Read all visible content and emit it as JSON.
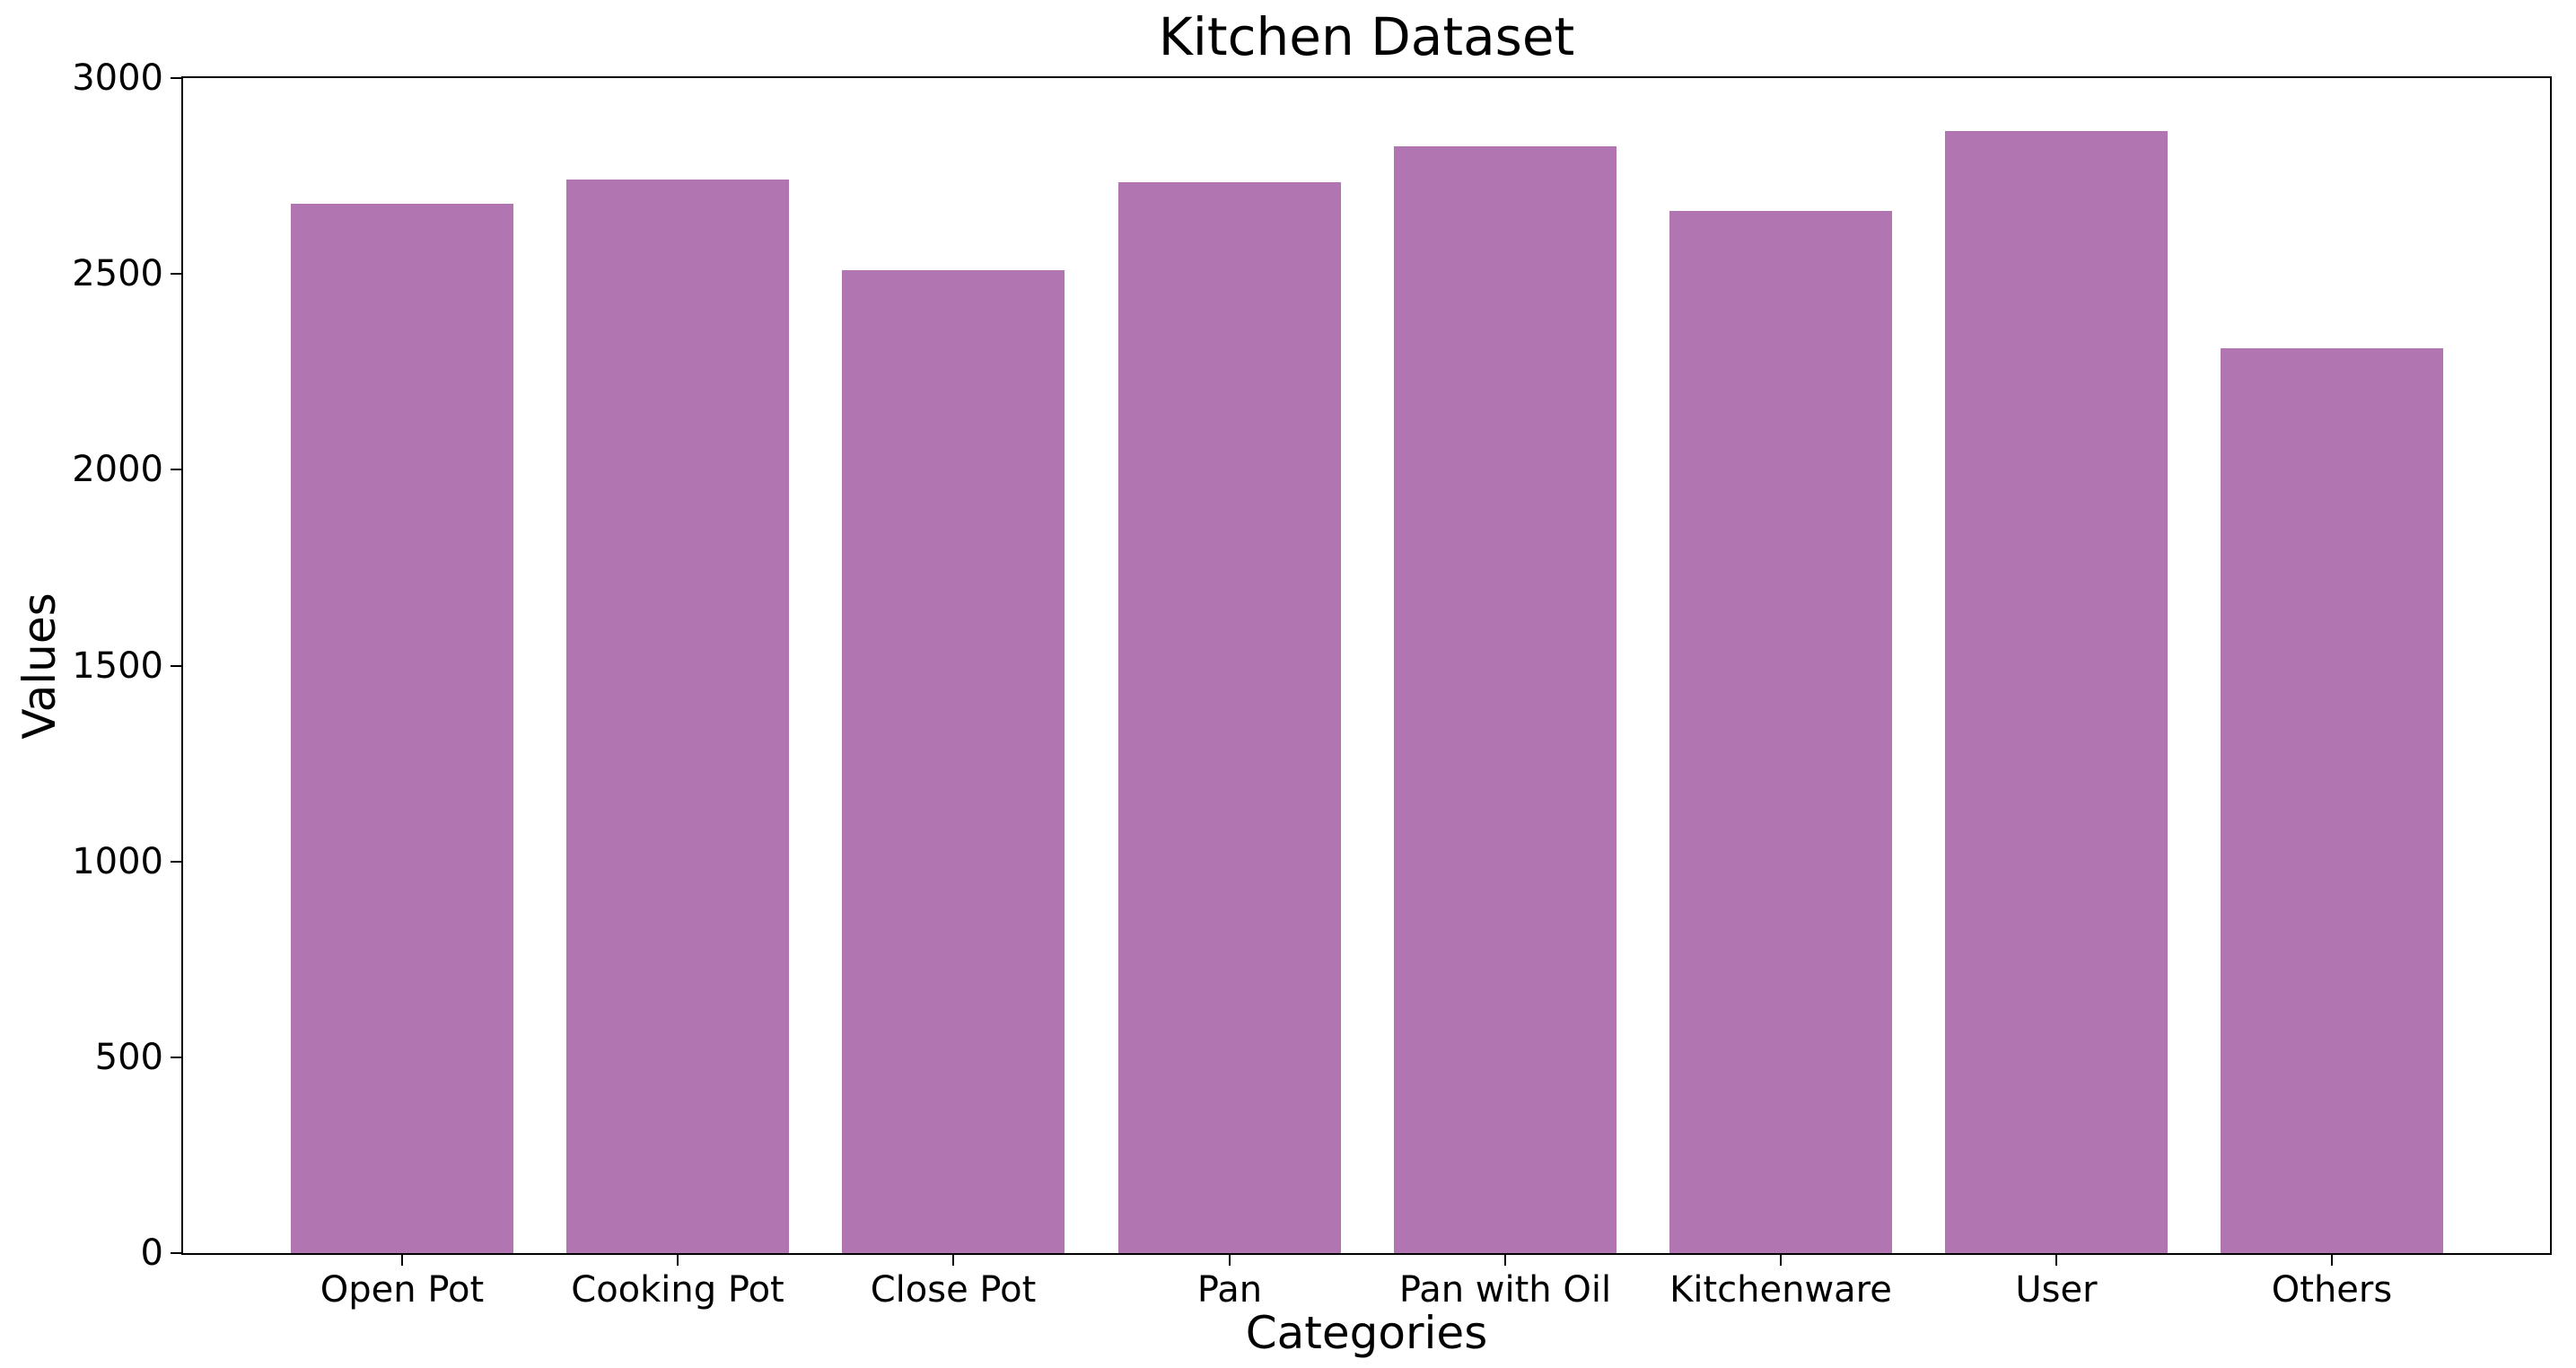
{
  "chart_data": {
    "type": "bar",
    "title": "Kitchen Dataset",
    "xlabel": "Categories",
    "ylabel": "Values",
    "categories": [
      "Open Pot",
      "Cooking Pot",
      "Close Pot",
      "Pan",
      "Pan with Oil",
      "Kitchenware",
      "User",
      "Others"
    ],
    "values": [
      2680,
      2740,
      2510,
      2735,
      2825,
      2660,
      2865,
      2310
    ],
    "ylim": [
      0,
      3000
    ],
    "yticks": [
      0,
      500,
      1000,
      1500,
      2000,
      2500,
      3000
    ],
    "bar_color": "#b175b2",
    "axis_color": "#000000",
    "background_color": "#ffffff",
    "grid": false,
    "legend": false
  }
}
